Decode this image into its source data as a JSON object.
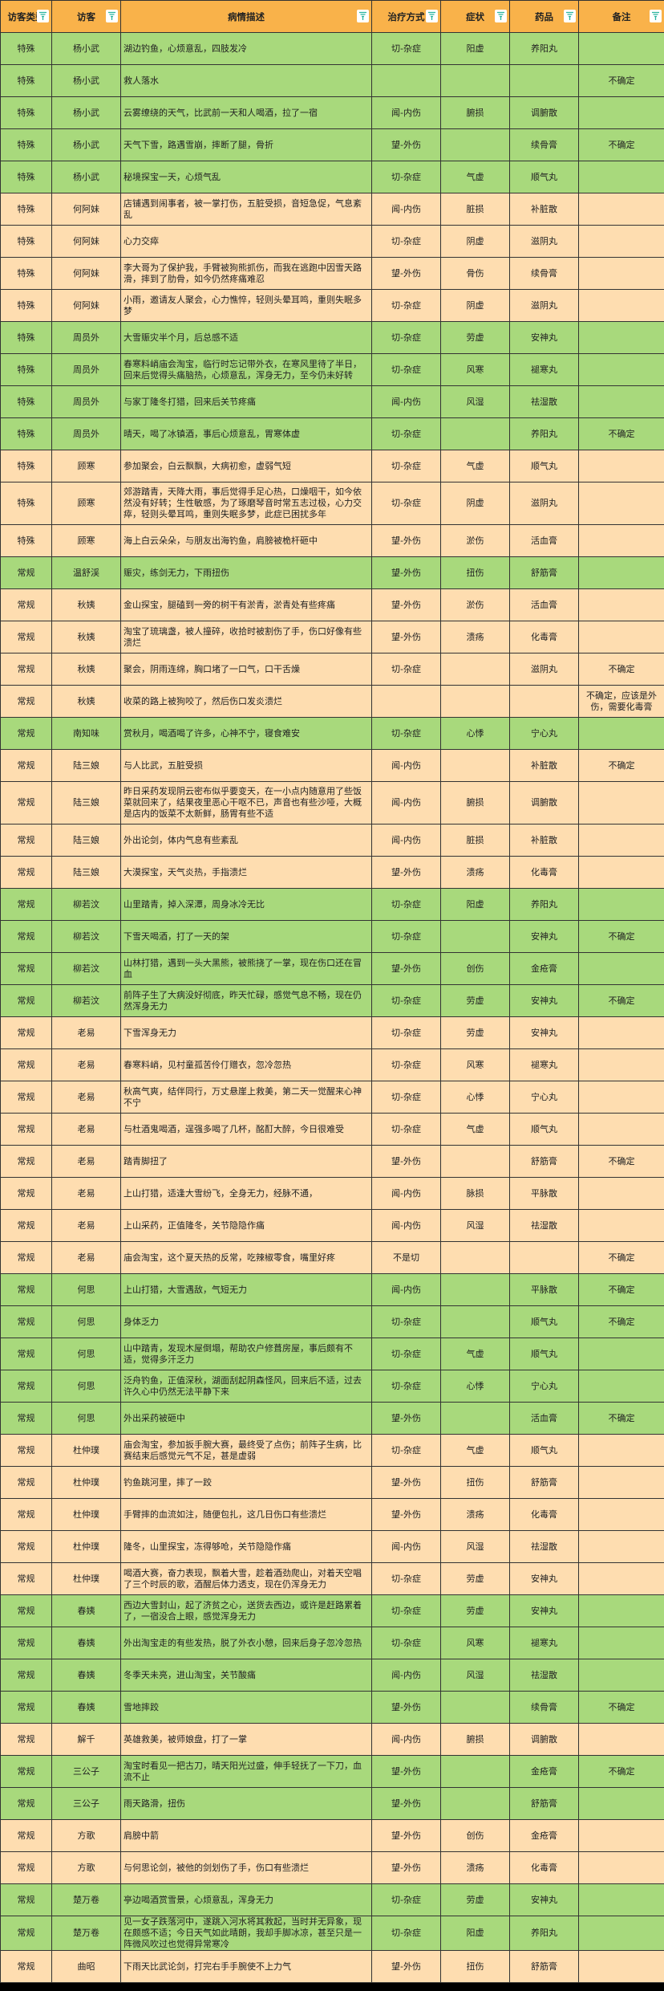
{
  "colors": {
    "header": "#F9B24A",
    "green": "#A8D97C",
    "orange": "#FEDDB0",
    "filter_icon": "#2BB5A0"
  },
  "headers": [
    "访客类型",
    "访客",
    "病情描述",
    "治疗方式",
    "症状",
    "药品",
    "备注"
  ],
  "rows": [
    {
      "bg": "green",
      "cells": [
        "特殊",
        "杨小武",
        "湖边钓鱼，心烦意乱，四肢发冷",
        "切-杂症",
        "阳虚",
        "养阳丸",
        ""
      ]
    },
    {
      "bg": "green",
      "cells": [
        "特殊",
        "杨小武",
        "救人落水",
        "",
        "",
        "",
        "不确定"
      ]
    },
    {
      "bg": "green",
      "cells": [
        "特殊",
        "杨小武",
        "云雾缭绕的天气，比武前一天和人喝酒，拉了一宿",
        "闻-内伤",
        "腑损",
        "调腑散",
        ""
      ]
    },
    {
      "bg": "green",
      "cells": [
        "特殊",
        "杨小武",
        "天气下雪，路遇雪崩，摔断了腿，骨折",
        "望-外伤",
        "",
        "续骨膏",
        "不确定"
      ]
    },
    {
      "bg": "green",
      "cells": [
        "特殊",
        "杨小武",
        "秘境探宝一天，心烦气乱",
        "切-杂症",
        "气虚",
        "顺气丸",
        ""
      ]
    },
    {
      "bg": "orange",
      "cells": [
        "特殊",
        "何阿妹",
        "店铺遇到闹事者，被一掌打伤，五脏受损，音短急促，气息紊乱",
        "闻-内伤",
        "脏损",
        "补脏散",
        ""
      ]
    },
    {
      "bg": "orange",
      "cells": [
        "特殊",
        "何阿妹",
        "心力交瘁",
        "切-杂症",
        "阴虚",
        "滋阴丸",
        ""
      ]
    },
    {
      "bg": "orange",
      "cells": [
        "特殊",
        "何阿妹",
        "李大哥为了保护我，手臂被狗熊抓伤，而我在逃跑中因雪天路滑，摔到了肋骨，如今仍然疼痛难忍",
        "望-外伤",
        "骨伤",
        "续骨膏",
        ""
      ]
    },
    {
      "bg": "orange",
      "cells": [
        "特殊",
        "何阿妹",
        "小雨，邀请友人聚会，心力憔悴，轻则头晕耳鸣，重则失眠多梦",
        "切-杂症",
        "阴虚",
        "滋阴丸",
        ""
      ]
    },
    {
      "bg": "green",
      "cells": [
        "特殊",
        "周员外",
        "大雪赈灾半个月，后总感不适",
        "切-杂症",
        "劳虚",
        "安神丸",
        ""
      ]
    },
    {
      "bg": "green",
      "cells": [
        "特殊",
        "周员外",
        "春寒料峭庙会淘宝，临行时忘记带外衣，在寒风里待了半日，回来后觉得头痛脑热，心烦意乱，浑身无力，至今仍未好转",
        "切-杂症",
        "风寒",
        "褪寒丸",
        ""
      ]
    },
    {
      "bg": "green",
      "cells": [
        "特殊",
        "周员外",
        "与家丁隆冬打猎，回来后关节疼痛",
        "闻-内伤",
        "风湿",
        "祛湿散",
        ""
      ]
    },
    {
      "bg": "green",
      "cells": [
        "特殊",
        "周员外",
        "晴天，喝了冰镇酒，事后心烦意乱，胃寒体虚",
        "切-杂症",
        "",
        "养阳丸",
        "不确定"
      ]
    },
    {
      "bg": "orange",
      "cells": [
        "特殊",
        "顾寒",
        "参加聚会，白云飘飘，大病初愈，虚弱气短",
        "切-杂症",
        "气虚",
        "顺气丸",
        ""
      ]
    },
    {
      "bg": "orange",
      "tall": true,
      "cells": [
        "特殊",
        "顾寒",
        "郊游踏青，天降大雨，事后觉得手足心热，口燥咽干，如今依然没有好转；生性敏感，为了琢磨琴音时常五志过极，心力交瘁，轻则头晕耳鸣，重则失眠多梦，此症已困扰多年",
        "切-杂症",
        "阴虚",
        "滋阴丸",
        ""
      ]
    },
    {
      "bg": "orange",
      "cells": [
        "特殊",
        "顾寒",
        "海上白云朵朵，与朋友出海钓鱼，肩膀被桅杆砸中",
        "望-外伤",
        "淤伤",
        "活血膏",
        ""
      ]
    },
    {
      "bg": "green",
      "cells": [
        "常规",
        "温舒渓",
        "赈灾，练剑无力，下雨扭伤",
        "望-外伤",
        "扭伤",
        "舒筋膏",
        ""
      ]
    },
    {
      "bg": "orange",
      "cells": [
        "常规",
        "秋姨",
        "金山探宝，腿磕到一旁的树干有淤青，淤青处有些疼痛",
        "望-外伤",
        "淤伤",
        "活血膏",
        ""
      ]
    },
    {
      "bg": "orange",
      "cells": [
        "常规",
        "秋姨",
        "淘宝了琉璃盏，被人撞碎，收拾时被割伤了手，伤口好像有些溃烂",
        "望-外伤",
        "溃疡",
        "化毒膏",
        ""
      ]
    },
    {
      "bg": "orange",
      "cells": [
        "常规",
        "秋姨",
        "聚会，阴雨连绵，胸口堵了一口气，口干舌燥",
        "切-杂症",
        "",
        "滋阴丸",
        "不确定"
      ]
    },
    {
      "bg": "orange",
      "cells": [
        "常规",
        "秋姨",
        "收菜的路上被狗咬了，然后伤口发炎溃烂",
        "",
        "",
        "",
        "不确定，应该是外伤，需要化毒膏"
      ]
    },
    {
      "bg": "green",
      "cells": [
        "常规",
        "南知味",
        "赏秋月，喝酒喝了许多，心神不宁，寝食难安",
        "切-杂症",
        "心悸",
        "宁心丸",
        ""
      ]
    },
    {
      "bg": "orange",
      "cells": [
        "常规",
        "陆三娘",
        "与人比武，五脏受损",
        "闻-内伤",
        "",
        "补脏散",
        "不确定"
      ]
    },
    {
      "bg": "orange",
      "tall": true,
      "cells": [
        "常规",
        "陆三娘",
        "昨日采药发现阴云密布似乎要变天，在一小点内随意用了些饭菜就回来了，结果夜里恶心干呕不已，声音也有些沙哑，大概是店内的饭菜不太新鲜，肠胃有些不适",
        "闻-内伤",
        "腑损",
        "调腑散",
        ""
      ]
    },
    {
      "bg": "orange",
      "cells": [
        "常规",
        "陆三娘",
        "外出论剑，体内气息有些紊乱",
        "闻-内伤",
        "脏损",
        "补脏散",
        ""
      ]
    },
    {
      "bg": "orange",
      "cells": [
        "常规",
        "陆三娘",
        "大漠探宝，天气炎热，手指溃烂",
        "望-外伤",
        "溃疡",
        "化毒膏",
        ""
      ]
    },
    {
      "bg": "green",
      "cells": [
        "常规",
        "柳若汶",
        "山里踏青，掉入深潭，周身冰冷无比",
        "切-杂症",
        "阳虚",
        "养阳丸",
        ""
      ]
    },
    {
      "bg": "green",
      "cells": [
        "常规",
        "柳若汶",
        "下雪天喝酒，打了一天的架",
        "切-杂症",
        "",
        "安神丸",
        "不确定"
      ]
    },
    {
      "bg": "green",
      "cells": [
        "常规",
        "柳若汶",
        "山林打猎，遇到一头大黑熊，被熊挠了一掌，现在伤口还在冒血",
        "望-外伤",
        "创伤",
        "金疮膏",
        ""
      ]
    },
    {
      "bg": "green",
      "cells": [
        "常规",
        "柳若汶",
        "前阵子生了大病没好彻底，昨天忙碌，感觉气息不畅，现在仍然浑身无力",
        "切-杂症",
        "劳虚",
        "安神丸",
        "不确定"
      ]
    },
    {
      "bg": "orange",
      "cells": [
        "常规",
        "老易",
        "下雪浑身无力",
        "切-杂症",
        "劳虚",
        "安神丸",
        ""
      ]
    },
    {
      "bg": "orange",
      "cells": [
        "常规",
        "老易",
        "春寒料峭，见村童孤苦伶仃赠衣，忽冷忽热",
        "切-杂症",
        "风寒",
        "褪寒丸",
        ""
      ]
    },
    {
      "bg": "orange",
      "cells": [
        "常规",
        "老易",
        "秋高气爽，结伴同行，万丈悬崖上救美，第二天一觉醒来心神不宁",
        "切-杂症",
        "心悸",
        "宁心丸",
        ""
      ]
    },
    {
      "bg": "orange",
      "cells": [
        "常规",
        "老易",
        "与杜酒鬼喝酒，逞强多喝了几杯，酩酊大醉，今日很难受",
        "切-杂症",
        "气虚",
        "顺气丸",
        ""
      ]
    },
    {
      "bg": "orange",
      "cells": [
        "常规",
        "老易",
        "踏青脚扭了",
        "望-外伤",
        "",
        "舒筋膏",
        "不确定"
      ]
    },
    {
      "bg": "orange",
      "cells": [
        "常规",
        "老易",
        "上山打猎，适逢大雪纷飞，全身无力，经脉不通，",
        "闻-内伤",
        "脉损",
        "平脉散",
        ""
      ]
    },
    {
      "bg": "orange",
      "cells": [
        "常规",
        "老易",
        "上山采药，正值隆冬，关节隐隐作痛",
        "闻-内伤",
        "风湿",
        "祛湿散",
        ""
      ]
    },
    {
      "bg": "orange",
      "cells": [
        "常规",
        "老易",
        "庙会淘宝，这个夏天热的反常，吃辣椒零食，嘴里好疼",
        "不是切",
        "",
        "",
        "不确定"
      ]
    },
    {
      "bg": "green",
      "cells": [
        "常规",
        "何思",
        "上山打猎，大雪遇敌，气短无力",
        "闻-内伤",
        "",
        "平脉散",
        "不确定"
      ]
    },
    {
      "bg": "green",
      "cells": [
        "常规",
        "何思",
        "身体乏力",
        "切-杂症",
        "",
        "顺气丸",
        "不确定"
      ]
    },
    {
      "bg": "green",
      "cells": [
        "常规",
        "何思",
        "山中踏青，发现木屋倒塌，帮助农户修葺房屋，事后颇有不适，觉得多汗乏力",
        "切-杂症",
        "气虚",
        "顺气丸",
        ""
      ]
    },
    {
      "bg": "green",
      "cells": [
        "常规",
        "何思",
        "泛舟钓鱼，正值深秋，湖面刮起阴森怪风，回来后不适，过去许久心中仍然无法平静下来",
        "切-杂症",
        "心悸",
        "宁心丸",
        ""
      ]
    },
    {
      "bg": "green",
      "cells": [
        "常规",
        "何思",
        "外出采药被砸中",
        "望-外伤",
        "",
        "活血膏",
        "不确定"
      ]
    },
    {
      "bg": "orange",
      "cells": [
        "常规",
        "杜仲璞",
        "庙会淘宝，参加扳手腕大赛，最终受了点伤；前阵子生病，比赛结束后感觉元气不足，甚是虚弱",
        "切-杂症",
        "气虚",
        "顺气丸",
        ""
      ]
    },
    {
      "bg": "orange",
      "cells": [
        "常规",
        "杜仲璞",
        "钓鱼跳河里，摔了一跤",
        "望-外伤",
        "扭伤",
        "舒筋膏",
        ""
      ]
    },
    {
      "bg": "orange",
      "cells": [
        "常规",
        "杜仲璞",
        "手臂摔的血流如注，随便包扎，这几日伤口有些溃烂",
        "望-外伤",
        "溃疡",
        "化毒膏",
        ""
      ]
    },
    {
      "bg": "orange",
      "cells": [
        "常规",
        "杜仲璞",
        "隆冬，山里探宝，冻得够呛，关节隐隐作痛",
        "闻-内伤",
        "风湿",
        "祛湿散",
        ""
      ]
    },
    {
      "bg": "orange",
      "cells": [
        "常规",
        "杜仲璞",
        "喝酒大赛，奋力表现，飘着大雪，趁着酒劲爬山，对着天空唱了三个时辰的歌，酒醒后体力透支，现在仍浑身无力",
        "切-杂症",
        "劳虚",
        "安神丸",
        ""
      ]
    },
    {
      "bg": "green",
      "cells": [
        "常规",
        "春姨",
        "西边大雪封山，起了济贫之心，送货去西边，或许是赶路累着了，一宿没合上眼，感觉浑身无力",
        "切-杂症",
        "劳虚",
        "安神丸",
        ""
      ]
    },
    {
      "bg": "green",
      "cells": [
        "常规",
        "春姨",
        "外出淘宝走的有些发热，脱了外衣小憩，回来后身子忽冷忽热",
        "切-杂症",
        "风寒",
        "褪寒丸",
        ""
      ]
    },
    {
      "bg": "green",
      "cells": [
        "常规",
        "春姨",
        "冬季天未亮，进山淘宝，关节酸痛",
        "闻-内伤",
        "风湿",
        "祛湿散",
        ""
      ]
    },
    {
      "bg": "green",
      "cells": [
        "常规",
        "春姨",
        "雪地摔跤",
        "望-外伤",
        "",
        "续骨膏",
        "不确定"
      ]
    },
    {
      "bg": "orange",
      "cells": [
        "常规",
        "解千",
        "英雄救美，被师娘盘，打了一掌",
        "闻-内伤",
        "腑损",
        "调腑散",
        ""
      ]
    },
    {
      "bg": "green",
      "cells": [
        "常规",
        "三公子",
        "淘宝时看见一把古刀，晴天阳光过盛，伸手轻抚了一下刀，血流不止",
        "望-外伤",
        "",
        "金疮膏",
        "不确定"
      ]
    },
    {
      "bg": "green",
      "cells": [
        "常规",
        "三公子",
        "雨天路滑，扭伤",
        "望-外伤",
        "",
        "舒筋膏",
        ""
      ]
    },
    {
      "bg": "orange",
      "cells": [
        "常规",
        "方歌",
        "肩膀中箭",
        "望-外伤",
        "创伤",
        "金疮膏",
        ""
      ]
    },
    {
      "bg": "orange",
      "cells": [
        "常规",
        "方歌",
        "与何思论剑，被他的剑划伤了手，伤口有些溃烂",
        "望-外伤",
        "溃疡",
        "化毒膏",
        ""
      ]
    },
    {
      "bg": "green",
      "cells": [
        "常规",
        "楚万卷",
        "亭边喝酒赏雪景，心烦意乱，浑身无力",
        "切-杂症",
        "劳虚",
        "安神丸",
        ""
      ]
    },
    {
      "bg": "green",
      "cells": [
        "常规",
        "楚万卷",
        "见一女子跌落河中，遂跳入河水将其救起，当时并无异象，现在颇感不适；今日天气如此晴朗，我却手脚冰凉，甚至只是一阵微风吹过也觉得异常寒冷",
        "切-杂症",
        "阳虚",
        "养阳丸",
        ""
      ]
    },
    {
      "bg": "orange",
      "cells": [
        "常规",
        "曲昭",
        "下雨天比武论剑，打完右手手腕使不上力气",
        "望-外伤",
        "扭伤",
        "舒筋膏",
        ""
      ]
    }
  ]
}
